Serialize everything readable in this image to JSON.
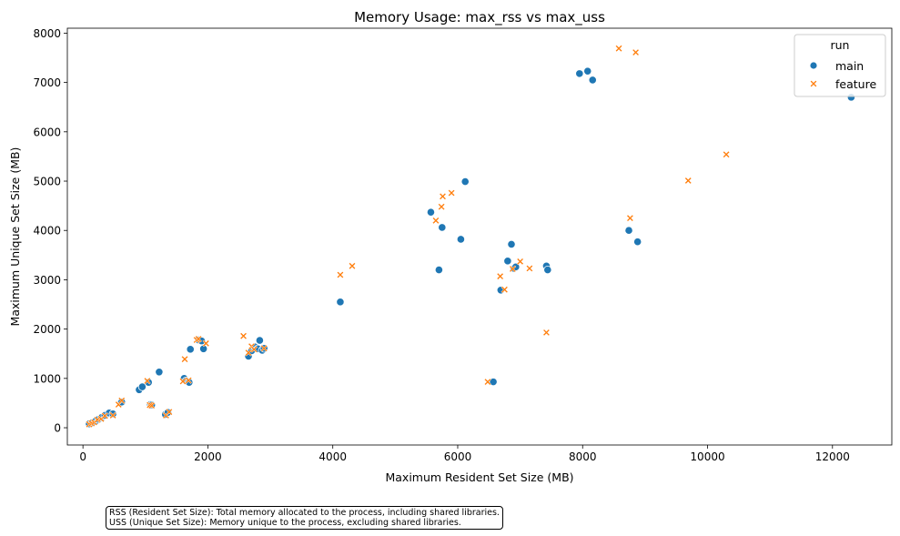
{
  "chart_data": {
    "type": "scatter",
    "title": "Memory Usage: max_rss vs max_uss",
    "xlabel": "Maximum Resident Set Size (MB)",
    "ylabel": "Maximum Unique Set Size (MB)",
    "xlim": [
      -250,
      12950
    ],
    "ylim": [
      -350,
      8100
    ],
    "xticks": [
      0,
      2000,
      4000,
      6000,
      8000,
      10000,
      12000
    ],
    "yticks": [
      0,
      1000,
      2000,
      3000,
      4000,
      5000,
      6000,
      7000,
      8000
    ],
    "xtick_labels": [
      "0",
      "2000",
      "4000",
      "6000",
      "8000",
      "10000",
      "12000"
    ],
    "ytick_labels": [
      "0",
      "1000",
      "2000",
      "3000",
      "4000",
      "5000",
      "6000",
      "7000",
      "8000"
    ],
    "grid": false,
    "legend": {
      "title": "run",
      "placement": "top-right",
      "entries": [
        "main",
        "feature"
      ]
    },
    "series": [
      {
        "name": "main",
        "marker": "circle",
        "color": "#1f77b4",
        "points": [
          [
            100,
            80
          ],
          [
            150,
            100
          ],
          [
            200,
            130
          ],
          [
            250,
            170
          ],
          [
            300,
            210
          ],
          [
            350,
            250
          ],
          [
            420,
            300
          ],
          [
            480,
            280
          ],
          [
            600,
            500
          ],
          [
            620,
            520
          ],
          [
            900,
            770
          ],
          [
            950,
            830
          ],
          [
            1050,
            920
          ],
          [
            1080,
            470
          ],
          [
            1100,
            460
          ],
          [
            1220,
            1130
          ],
          [
            1320,
            270
          ],
          [
            1360,
            310
          ],
          [
            1620,
            1000
          ],
          [
            1650,
            950
          ],
          [
            1700,
            920
          ],
          [
            1720,
            1590
          ],
          [
            1850,
            1780
          ],
          [
            1900,
            1760
          ],
          [
            1930,
            1600
          ],
          [
            2650,
            1450
          ],
          [
            2700,
            1560
          ],
          [
            2750,
            1640
          ],
          [
            2800,
            1600
          ],
          [
            2830,
            1770
          ],
          [
            2870,
            1570
          ],
          [
            2900,
            1610
          ],
          [
            4120,
            2550
          ],
          [
            5570,
            4370
          ],
          [
            5700,
            3200
          ],
          [
            5750,
            4060
          ],
          [
            6050,
            3820
          ],
          [
            6120,
            4990
          ],
          [
            6570,
            930
          ],
          [
            6690,
            2790
          ],
          [
            6800,
            3380
          ],
          [
            6860,
            3720
          ],
          [
            6900,
            3230
          ],
          [
            6930,
            3260
          ],
          [
            7420,
            3280
          ],
          [
            7440,
            3200
          ],
          [
            7950,
            7180
          ],
          [
            8080,
            7230
          ],
          [
            8160,
            7050
          ],
          [
            8740,
            4000
          ],
          [
            8880,
            3770
          ],
          [
            12300,
            6700
          ]
        ]
      },
      {
        "name": "feature",
        "marker": "x",
        "color": "#ff7f0e",
        "points": [
          [
            100,
            70
          ],
          [
            140,
            90
          ],
          [
            180,
            110
          ],
          [
            230,
            160
          ],
          [
            290,
            180
          ],
          [
            350,
            240
          ],
          [
            480,
            250
          ],
          [
            570,
            470
          ],
          [
            620,
            550
          ],
          [
            1030,
            950
          ],
          [
            1070,
            460
          ],
          [
            1100,
            450
          ],
          [
            1330,
            250
          ],
          [
            1380,
            320
          ],
          [
            1600,
            940
          ],
          [
            1630,
            1390
          ],
          [
            1690,
            960
          ],
          [
            1820,
            1780
          ],
          [
            1850,
            1800
          ],
          [
            1970,
            1710
          ],
          [
            2570,
            1860
          ],
          [
            2650,
            1520
          ],
          [
            2700,
            1650
          ],
          [
            2740,
            1590
          ],
          [
            2900,
            1610
          ],
          [
            4120,
            3100
          ],
          [
            4310,
            3280
          ],
          [
            5650,
            4200
          ],
          [
            5740,
            4480
          ],
          [
            5760,
            4690
          ],
          [
            5900,
            4760
          ],
          [
            6480,
            930
          ],
          [
            6680,
            3070
          ],
          [
            6750,
            2800
          ],
          [
            6880,
            3220
          ],
          [
            7000,
            3370
          ],
          [
            7150,
            3230
          ],
          [
            7420,
            1930
          ],
          [
            8580,
            7690
          ],
          [
            8850,
            7610
          ],
          [
            8760,
            4250
          ],
          [
            9690,
            5010
          ],
          [
            10300,
            5540
          ]
        ]
      }
    ]
  },
  "notes": {
    "line1": "RSS (Resident Set Size): Total memory allocated to the process, including shared libraries.",
    "line2": "USS (Unique Set Size): Memory unique to the process, excluding shared libraries."
  }
}
